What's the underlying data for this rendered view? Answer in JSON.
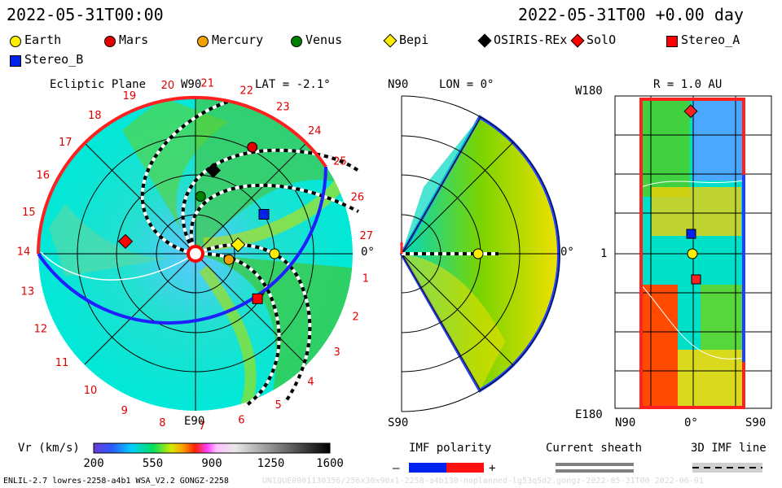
{
  "header": {
    "left_time": "2022-05-31T00:00",
    "right_time": "2022-05-31T00 +0.00 day"
  },
  "legend": [
    {
      "name": "Earth",
      "shape": "circle",
      "color": "#ffee00"
    },
    {
      "name": "Mars",
      "shape": "circle",
      "color": "#e00000"
    },
    {
      "name": "Mercury",
      "shape": "circle",
      "color": "#f0a000"
    },
    {
      "name": "Venus",
      "shape": "circle",
      "color": "#008000"
    },
    {
      "name": "Bepi",
      "shape": "diamond",
      "color": "#ffee00"
    },
    {
      "name": "OSIRIS-REx",
      "shape": "diamond",
      "color": "#000000"
    },
    {
      "name": "SolO",
      "shape": "diamond",
      "color": "#ff0000"
    },
    {
      "name": "Stereo_A",
      "shape": "square",
      "color": "#ff0000"
    },
    {
      "name": "Stereo_B",
      "shape": "square",
      "color": "#0022ee"
    }
  ],
  "chart_data": [
    {
      "type": "polar-map",
      "title": "Ecliptic Plane",
      "lat_label": "LAT = -2.1°",
      "axis_labels": {
        "top": "W90",
        "bottom": "E90",
        "right": "0°"
      },
      "carrington_ticks": [
        "1",
        "2",
        "3",
        "4",
        "5",
        "6",
        "7",
        "8",
        "9",
        "10",
        "11",
        "12",
        "13",
        "14",
        "15",
        "16",
        "17",
        "18",
        "19",
        "20",
        "21",
        "22",
        "23",
        "24",
        "25",
        "26",
        "27"
      ],
      "bodies": [
        {
          "name": "Earth",
          "lon_deg": 0,
          "r_au": 1.0
        },
        {
          "name": "Mars",
          "lon_deg": 62,
          "r_au": 1.53
        },
        {
          "name": "Mercury",
          "lon_deg": -10,
          "r_au": 0.43
        },
        {
          "name": "Venus",
          "lon_deg": 85,
          "r_au": 0.73
        },
        {
          "name": "Bepi",
          "lon_deg": 12,
          "r_au": 0.55
        },
        {
          "name": "OSIRIS-REx",
          "lon_deg": 78,
          "r_au": 1.08
        },
        {
          "name": "SolO",
          "lon_deg": 170,
          "r_au": 0.9
        },
        {
          "name": "Stereo_A",
          "lon_deg": -36,
          "r_au": 0.97
        },
        {
          "name": "Stereo_B",
          "lon_deg": 30,
          "r_au": 1.0
        }
      ]
    },
    {
      "type": "polar-map",
      "title": "LON = 0°",
      "axis_labels": {
        "top": "N90",
        "bottom": "S90",
        "right": "0°"
      }
    },
    {
      "type": "heatmap",
      "title": "R = 1.0 AU",
      "axis_labels": {
        "top_left": "W180",
        "bottom_left": "E180",
        "left_mid": "1",
        "x_left": "N90",
        "x_mid": "0°",
        "x_right": "S90"
      }
    }
  ],
  "colorbar": {
    "label": "Vr (km/s)",
    "ticks": [
      "200",
      "550",
      "900",
      "1250",
      "1600"
    ]
  },
  "imf": {
    "title": "IMF polarity",
    "minus": "–",
    "plus": "+"
  },
  "sheath": {
    "title": "Current sheath"
  },
  "imf3d": {
    "title": "3D IMF line"
  },
  "footer": {
    "left": "ENLIL-2.7 lowres-2258-a4b1 WSA_V2.2 GONGZ-2258",
    "right": "UNIQUE0001130356/256x30x90x1-2258-a4b130-noplanned-lg53q5d2.gongz-2022-05-31T00  2022-06-01"
  }
}
